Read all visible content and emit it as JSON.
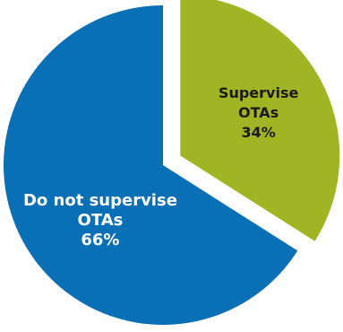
{
  "chart_data": {
    "type": "pie",
    "title": "",
    "slices": [
      {
        "label_lines": [
          "Supervise",
          "OTAs"
        ],
        "value_label": "34%",
        "value": 34,
        "color": "#9fb523",
        "text_color": "#1a1a1a",
        "exploded": true
      },
      {
        "label_lines": [
          "Do not supervise",
          "OTAs"
        ],
        "value_label": "66%",
        "value": 66,
        "color": "#0a70b5",
        "text_color": "#ffffff",
        "exploded": false
      }
    ],
    "start_angle_deg": 0,
    "direction": "clockwise",
    "legend": "none"
  }
}
